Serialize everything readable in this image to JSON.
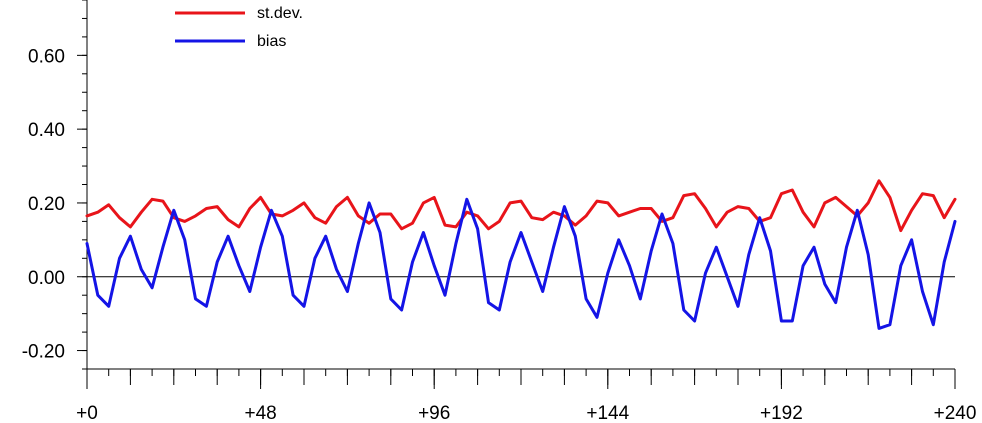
{
  "chart_data": {
    "type": "line",
    "title": "",
    "xlabel": "",
    "ylabel": "",
    "xlim": [
      0,
      240
    ],
    "ylim": [
      -0.25,
      0.75
    ],
    "x_ticks": [
      0,
      48,
      96,
      144,
      192,
      240
    ],
    "x_tick_labels": [
      "+0",
      "+48",
      "+96",
      "+144",
      "+192",
      "+240"
    ],
    "y_ticks": [
      -0.2,
      0.0,
      0.2,
      0.4,
      0.6
    ],
    "y_tick_labels": [
      "-0.20",
      "0.00",
      "0.20",
      "0.40",
      "0.60"
    ],
    "zero_line": true,
    "grid": false,
    "legend_position": "top-left",
    "series": [
      {
        "name": "st.dev.",
        "color": "#e8141a",
        "x": [
          0,
          3,
          6,
          9,
          12,
          15,
          18,
          21,
          24,
          27,
          30,
          33,
          36,
          39,
          42,
          45,
          48,
          51,
          54,
          57,
          60,
          63,
          66,
          69,
          72,
          75,
          78,
          81,
          84,
          87,
          90,
          93,
          96,
          99,
          102,
          105,
          108,
          111,
          114,
          117,
          120,
          123,
          126,
          129,
          132,
          135,
          138,
          141,
          144,
          147,
          150,
          153,
          156,
          159,
          162,
          165,
          168,
          171,
          174,
          177,
          180,
          183,
          186,
          189,
          192,
          195,
          198,
          201,
          204,
          207,
          210,
          213,
          216,
          219,
          222,
          225,
          228,
          231,
          234,
          237,
          240
        ],
        "values": [
          0.165,
          0.175,
          0.195,
          0.16,
          0.135,
          0.175,
          0.21,
          0.205,
          0.16,
          0.15,
          0.165,
          0.185,
          0.19,
          0.155,
          0.135,
          0.185,
          0.215,
          0.17,
          0.165,
          0.18,
          0.2,
          0.16,
          0.145,
          0.19,
          0.215,
          0.165,
          0.145,
          0.17,
          0.17,
          0.13,
          0.145,
          0.2,
          0.215,
          0.14,
          0.135,
          0.175,
          0.165,
          0.13,
          0.15,
          0.2,
          0.205,
          0.16,
          0.155,
          0.175,
          0.165,
          0.14,
          0.165,
          0.205,
          0.2,
          0.165,
          0.175,
          0.185,
          0.185,
          0.15,
          0.16,
          0.22,
          0.225,
          0.185,
          0.135,
          0.175,
          0.19,
          0.185,
          0.15,
          0.16,
          0.225,
          0.235,
          0.175,
          0.135,
          0.2,
          0.215,
          0.19,
          0.165,
          0.2,
          0.26,
          0.215,
          0.125,
          0.18,
          0.225,
          0.22,
          0.16,
          0.21
        ]
      },
      {
        "name": "bias",
        "color": "#1414e6",
        "x": [
          0,
          3,
          6,
          9,
          12,
          15,
          18,
          21,
          24,
          27,
          30,
          33,
          36,
          39,
          42,
          45,
          48,
          51,
          54,
          57,
          60,
          63,
          66,
          69,
          72,
          75,
          78,
          81,
          84,
          87,
          90,
          93,
          96,
          99,
          102,
          105,
          108,
          111,
          114,
          117,
          120,
          123,
          126,
          129,
          132,
          135,
          138,
          141,
          144,
          147,
          150,
          153,
          156,
          159,
          162,
          165,
          168,
          171,
          174,
          177,
          180,
          183,
          186,
          189,
          192,
          195,
          198,
          201,
          204,
          207,
          210,
          213,
          216,
          219,
          222,
          225,
          228,
          231,
          234,
          237,
          240
        ],
        "values": [
          0.09,
          -0.05,
          -0.08,
          0.05,
          0.11,
          0.02,
          -0.03,
          0.08,
          0.18,
          0.1,
          -0.06,
          -0.08,
          0.04,
          0.11,
          0.03,
          -0.04,
          0.08,
          0.18,
          0.11,
          -0.05,
          -0.08,
          0.05,
          0.11,
          0.02,
          -0.04,
          0.09,
          0.2,
          0.12,
          -0.06,
          -0.09,
          0.04,
          0.12,
          0.03,
          -0.05,
          0.09,
          0.21,
          0.13,
          -0.07,
          -0.09,
          0.04,
          0.12,
          0.04,
          -0.04,
          0.08,
          0.19,
          0.11,
          -0.06,
          -0.11,
          0.01,
          0.1,
          0.03,
          -0.06,
          0.07,
          0.17,
          0.09,
          -0.09,
          -0.12,
          0.01,
          0.08,
          0.0,
          -0.08,
          0.06,
          0.16,
          0.07,
          -0.12,
          -0.12,
          0.03,
          0.08,
          -0.02,
          -0.07,
          0.08,
          0.18,
          0.06,
          -0.14,
          -0.13,
          0.03,
          0.1,
          -0.04,
          -0.13,
          0.04,
          0.15
        ]
      }
    ]
  }
}
